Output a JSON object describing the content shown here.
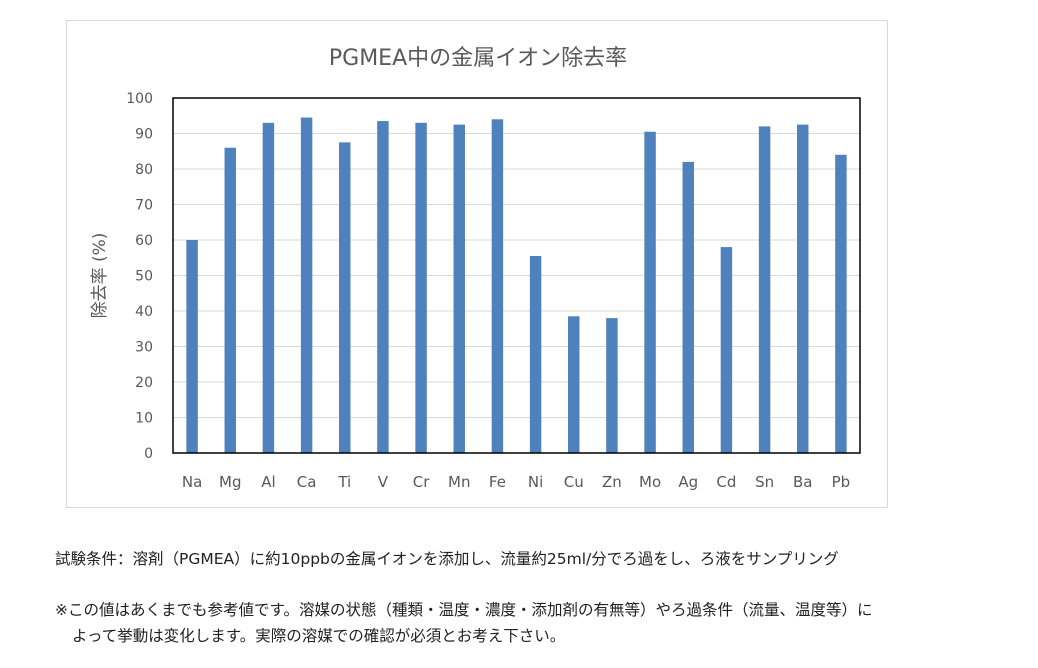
{
  "chart_data": {
    "type": "bar",
    "title": "PGMEA中の金属イオン除去率",
    "xlabel": "",
    "ylabel": "除去率 (%)",
    "ylim": [
      0,
      100
    ],
    "yticks": [
      0,
      10,
      20,
      30,
      40,
      50,
      60,
      70,
      80,
      90,
      100
    ],
    "grid": true,
    "legend": "none",
    "bar_color": "#4f81bd",
    "categories": [
      "Na",
      "Mg",
      "Al",
      "Ca",
      "Ti",
      "V",
      "Cr",
      "Mn",
      "Fe",
      "Ni",
      "Cu",
      "Zn",
      "Mo",
      "Ag",
      "Cd",
      "Sn",
      "Ba",
      "Pb"
    ],
    "values": [
      60,
      86,
      93,
      94.5,
      87.5,
      93.5,
      93,
      92.5,
      94,
      55.5,
      38.5,
      38,
      90.5,
      82,
      58,
      92,
      92.5,
      84
    ]
  },
  "notes": {
    "condition": "試験条件：溶剤（PGMEA）に約10ppbの金属イオンを添加し、流量約25ml/分でろ過をし、ろ液をサンプリング",
    "disclaimer_line1": "※この値はあくまでも参考値です。溶媒の状態（種類・温度・濃度・添加剤の有無等）やろ過条件（流量、温度等）に",
    "disclaimer_line2": "よって挙動は変化します。実際の溶媒での確認が必須とお考え下さい。"
  }
}
